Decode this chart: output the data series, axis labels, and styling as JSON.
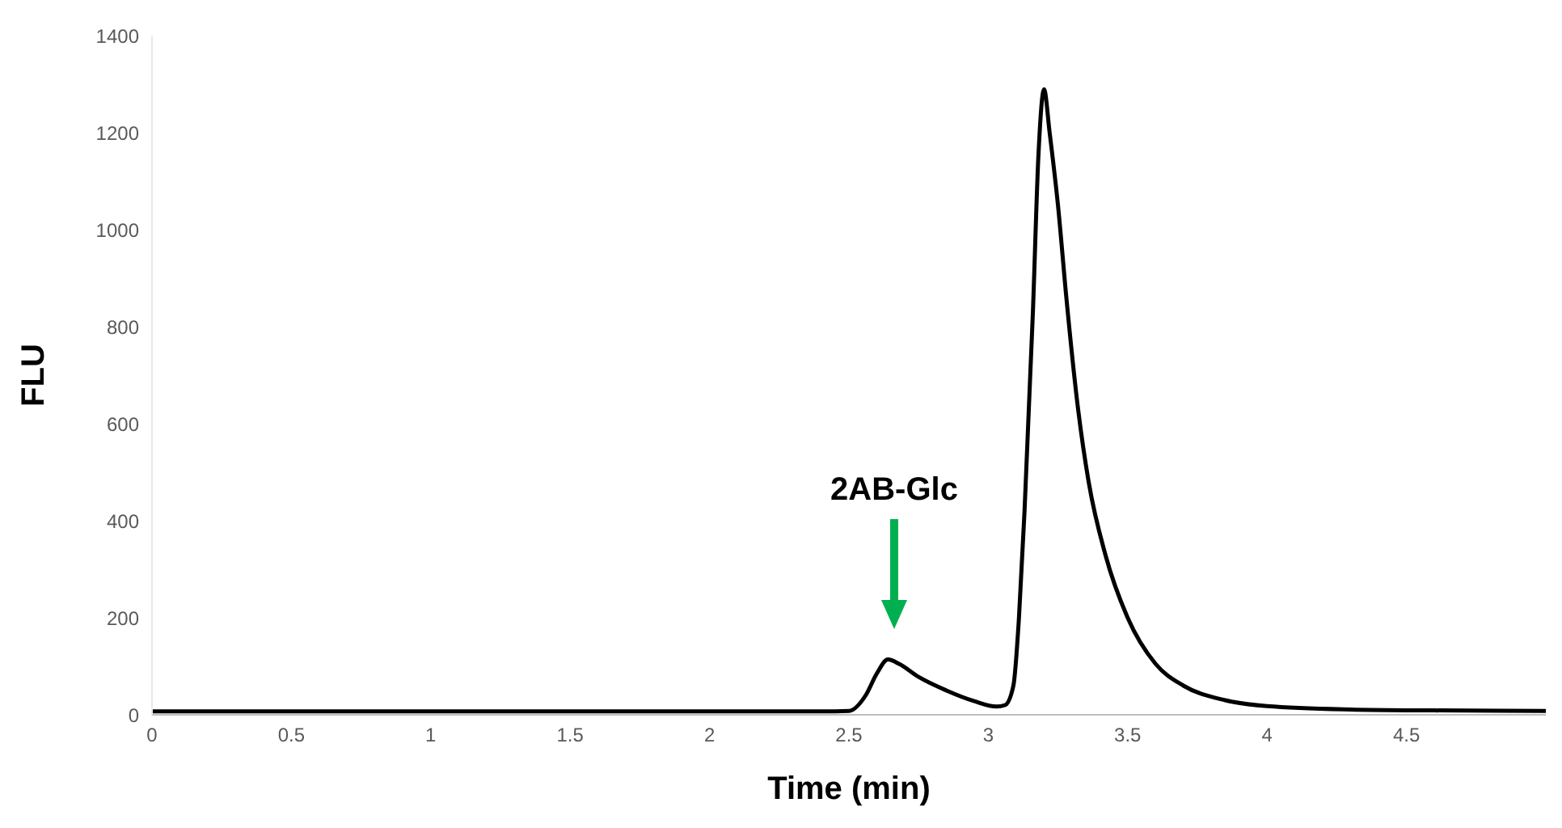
{
  "chart_data": {
    "type": "line",
    "xlabel": "Time (min)",
    "ylabel": "FLU",
    "x": [
      0,
      2.4,
      2.5,
      2.56,
      2.6,
      2.64,
      2.68,
      2.75,
      2.85,
      2.95,
      3.03,
      3.06,
      3.09,
      3.11,
      3.13,
      3.16,
      3.18,
      3.2,
      3.22,
      3.25,
      3.28,
      3.32,
      3.36,
      3.42,
      3.5,
      3.6,
      3.7,
      3.85,
      4.0,
      4.3,
      4.6,
      5.0
    ],
    "series": [
      {
        "color": "#000000",
        "values": [
          7,
          7,
          8,
          40,
          85,
          114,
          105,
          78,
          50,
          28,
          17,
          20,
          60,
          200,
          420,
          830,
          1155,
          1289,
          1200,
          1050,
          860,
          640,
          480,
          330,
          200,
          105,
          60,
          30,
          18,
          11,
          9,
          8
        ]
      }
    ],
    "xlim": [
      0,
      5
    ],
    "xticks": [
      0,
      0.5,
      1,
      1.5,
      2,
      2.5,
      3,
      3.5,
      4,
      4.5
    ],
    "ylim": [
      0,
      1400
    ],
    "yticks": [
      0,
      200,
      400,
      600,
      800,
      1000,
      1200,
      1400
    ],
    "grid": false,
    "legend": false,
    "marker": "none",
    "line_style": "solid",
    "annotations": [
      "2AB-Glc"
    ]
  }
}
